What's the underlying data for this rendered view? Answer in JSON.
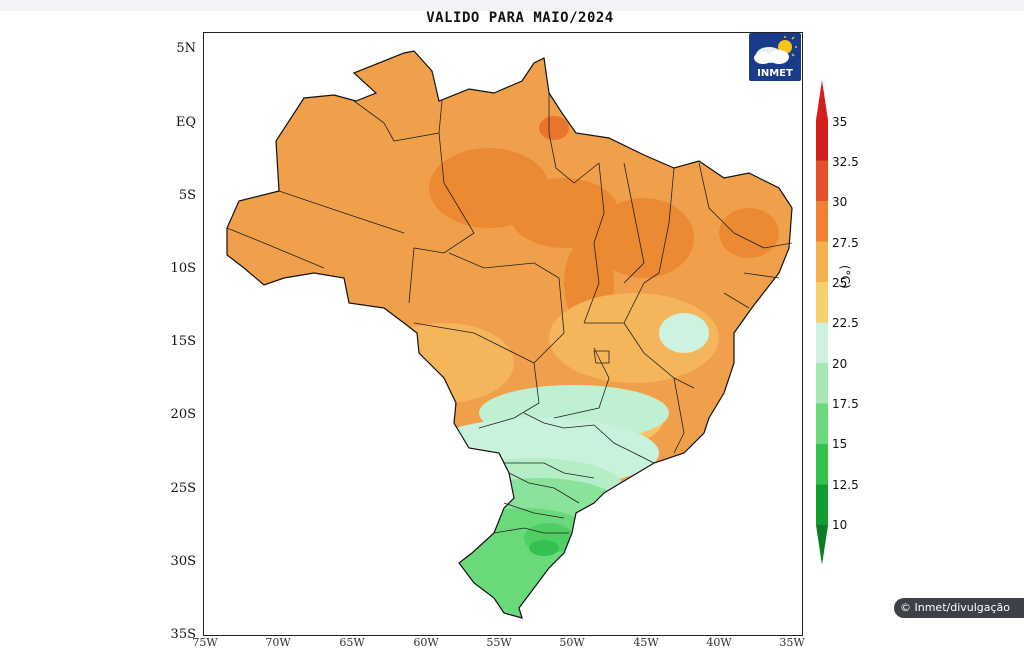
{
  "header": {
    "title": "VALIDO PARA MAIO/2024"
  },
  "map": {
    "lat_labels": [
      "5N",
      "EQ",
      "5S",
      "10S",
      "15S",
      "20S",
      "25S",
      "30S",
      "35S"
    ],
    "lon_labels": [
      "75W",
      "70W",
      "65W",
      "60W",
      "55W",
      "50W",
      "45W",
      "40W",
      "35W"
    ]
  },
  "logo": {
    "text": "INMET",
    "icon": "sun-cloud-icon"
  },
  "legend": {
    "unit": "(°C)",
    "labels": [
      "35",
      "32.5",
      "30",
      "27.5",
      "25",
      "22.5",
      "20",
      "17.5",
      "15",
      "12.5",
      "10"
    ],
    "colors": [
      "#d4201c",
      "#e8502a",
      "#ee8230",
      "#f5b04a",
      "#f7cf6c",
      "#cdf2e0",
      "#a6e8b2",
      "#6ad97a",
      "#35c14f",
      "#119e2e"
    ]
  },
  "credit": {
    "text": "© Inmet/divulgação"
  }
}
